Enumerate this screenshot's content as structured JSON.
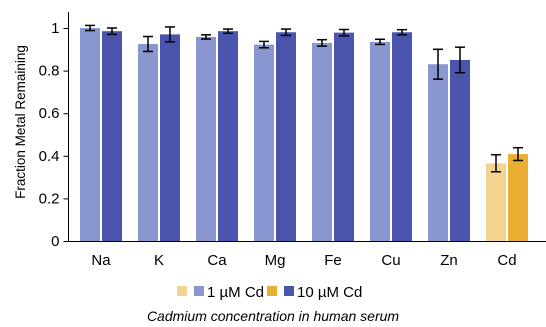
{
  "chart_data": {
    "type": "bar",
    "categories": [
      "Na",
      "K",
      "Ca",
      "Mg",
      "Fe",
      "Cu",
      "Zn",
      "Cd"
    ],
    "series": [
      {
        "name": "1 µM Cd",
        "values": [
          1.0,
          0.925,
          0.958,
          0.922,
          0.93,
          0.935,
          0.83,
          0.365
        ],
        "errors": [
          0.012,
          0.035,
          0.01,
          0.015,
          0.015,
          0.012,
          0.07,
          0.04
        ],
        "color": "#8996cf",
        "color_cd": "#f3d48e"
      },
      {
        "name": "10 µM Cd",
        "values": [
          0.985,
          0.97,
          0.985,
          0.98,
          0.978,
          0.98,
          0.85,
          0.408
        ],
        "errors": [
          0.015,
          0.035,
          0.01,
          0.015,
          0.015,
          0.012,
          0.06,
          0.03
        ],
        "color": "#4a54ad",
        "color_cd": "#eaae31"
      }
    ],
    "ylabel": "Fraction Metal Remaining",
    "xlabel": "Cadmium concentration in human serum",
    "ylim": [
      0,
      1.05
    ],
    "yticks": [
      0,
      0.2,
      0.4,
      0.6,
      0.8,
      1
    ],
    "ytick_labels": [
      "0",
      "0.2",
      "0.4",
      "0.6",
      "0.8",
      "1"
    ],
    "grid": false,
    "legend_position": "bottom",
    "legend": [
      {
        "label": "1 µM Cd",
        "color": "#f3d48e",
        "color_alt": "#8996cf"
      },
      {
        "label": "10 µM Cd",
        "color": "#eaae31",
        "color_alt": "#4a54ad"
      }
    ]
  }
}
